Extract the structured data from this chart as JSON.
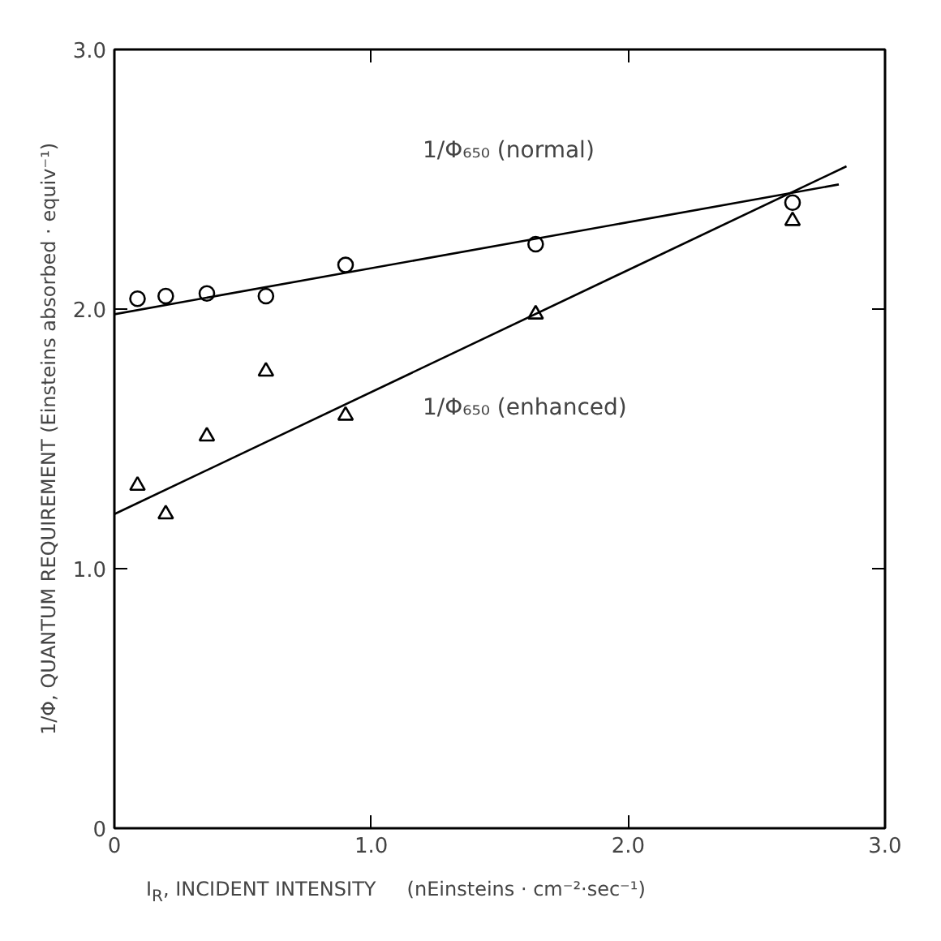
{
  "chart_data": {
    "type": "scatter",
    "xlabel": "I$_{R}$, INCIDENT INTENSITY     (nEinsteins · cm⁻²·sec⁻¹)",
    "ylabel": "1/Φ, QUANTUM REQUIREMENT (Einsteins absorbed · equiv⁻¹)",
    "xlim": [
      0,
      3.0
    ],
    "ylim": [
      0,
      3.0
    ],
    "xticks": [
      0,
      {
        "value": 1,
        "label": "1.0"
      },
      {
        "value": 2,
        "label": "2.0"
      },
      {
        "value": 3,
        "label": "3.0"
      }
    ],
    "yticks": [
      0,
      {
        "value": 1,
        "label": "1.0"
      },
      {
        "value": 2,
        "label": "2.0"
      },
      {
        "value": 3,
        "label": "3.0"
      }
    ],
    "grid": false,
    "series": [
      {
        "marker": "circle",
        "color": "#000000",
        "x": [
          0.09,
          0.2,
          0.36,
          0.59,
          0.9,
          1.64,
          2.64
        ],
        "values": [
          2.04,
          2.05,
          2.06,
          2.05,
          2.17,
          2.25,
          2.41
        ]
      },
      {
        "marker": "triangle",
        "color": "#000000",
        "x": [
          0.09,
          0.2,
          0.36,
          0.59,
          0.9,
          1.64,
          2.64
        ],
        "values": [
          1.32,
          1.21,
          1.51,
          1.76,
          1.59,
          1.98,
          2.34
        ]
      },
      {
        "type": "line",
        "color": "#000000",
        "x": [
          0,
          2.82
        ],
        "values": [
          1.98,
          2.48
        ]
      },
      {
        "type": "line",
        "color": "#000000",
        "x": [
          0,
          2.85
        ],
        "values": [
          1.21,
          2.55
        ]
      }
    ],
    "annotations": [
      "1/Φ₆₅₀ (normal)",
      "1/Φ₆₅₀ (enhanced)"
    ]
  }
}
